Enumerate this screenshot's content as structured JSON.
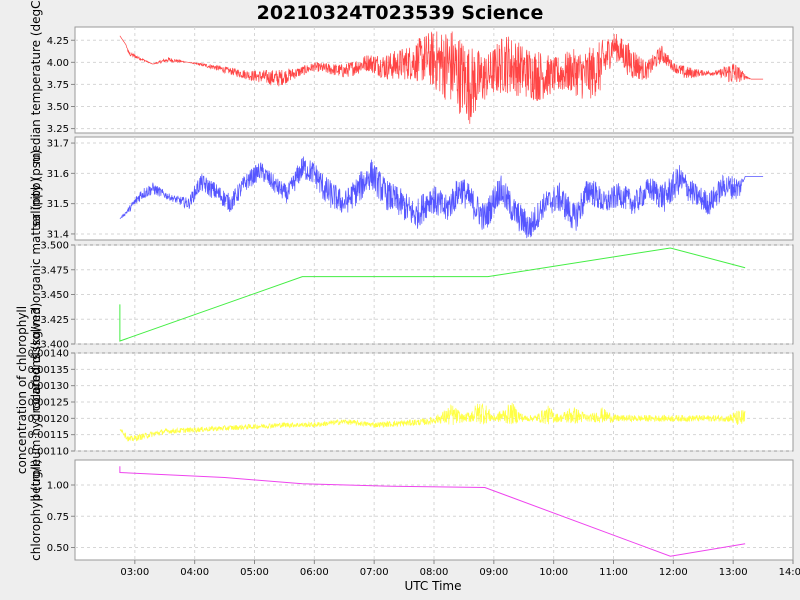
{
  "chart_data": {
    "type": "line",
    "title": "20210324T023539 Science",
    "xlabel": "UTC Time",
    "x_ticks": [
      "03:00",
      "04:00",
      "05:00",
      "06:00",
      "07:00",
      "08:00",
      "09:00",
      "10:00",
      "11:00",
      "12:00",
      "13:00",
      "14:00"
    ],
    "x_range_hours": [
      2.0,
      14.0
    ],
    "grid": true,
    "panels": [
      {
        "ylabel": "median temperature (degC)",
        "color": "#ff4444",
        "ylim": [
          3.2,
          4.4
        ],
        "y_ticks": [
          "3.25",
          "3.50",
          "3.75",
          "4.00",
          "4.25"
        ],
        "y_tick_values": [
          3.25,
          3.5,
          3.75,
          4.0,
          4.25
        ],
        "noisy": true,
        "x": [
          2.75,
          2.85,
          2.9,
          3.3,
          3.55,
          3.9,
          4.3,
          4.6,
          4.95,
          5.4,
          5.7,
          6.0,
          6.5,
          6.9,
          7.2,
          7.6,
          7.9,
          8.3,
          8.6,
          8.9,
          9.2,
          9.5,
          9.75,
          10.0,
          10.3,
          10.55,
          10.8,
          11.0,
          11.3,
          11.55,
          11.8,
          12.0,
          12.2,
          12.5,
          12.75,
          13.0,
          13.2,
          13.3,
          13.5
        ],
        "values": [
          4.3,
          4.2,
          4.1,
          3.98,
          4.03,
          4.0,
          3.95,
          3.9,
          3.85,
          3.82,
          3.88,
          3.95,
          3.9,
          4.0,
          3.95,
          4.0,
          4.05,
          3.95,
          3.75,
          3.85,
          4.0,
          3.9,
          3.85,
          3.85,
          3.9,
          3.85,
          3.95,
          4.2,
          4.0,
          3.9,
          4.1,
          3.95,
          3.88,
          3.88,
          3.88,
          3.88,
          3.84,
          3.81,
          3.81
        ],
        "amplitude": [
          0,
          0,
          0.03,
          0,
          0.03,
          0,
          0.03,
          0.04,
          0.06,
          0.1,
          0.06,
          0.05,
          0.08,
          0.1,
          0.15,
          0.2,
          0.3,
          0.45,
          0.45,
          0.25,
          0.35,
          0.3,
          0.3,
          0.2,
          0.25,
          0.3,
          0.3,
          0.15,
          0.2,
          0.1,
          0.1,
          0.05,
          0.08,
          0.03,
          0.03,
          0.15,
          0.03,
          0,
          0
        ]
      },
      {
        "ylabel": "salinity (psu)",
        "color": "#5555ff",
        "ylim": [
          31.38,
          31.72
        ],
        "y_ticks": [
          "31.4",
          "31.5",
          "31.6",
          "31.7"
        ],
        "y_tick_values": [
          31.4,
          31.5,
          31.6,
          31.7
        ],
        "noisy": true,
        "x": [
          2.75,
          2.9,
          3.1,
          3.3,
          3.6,
          3.9,
          4.1,
          4.35,
          4.6,
          4.85,
          5.1,
          5.35,
          5.55,
          5.8,
          6.0,
          6.2,
          6.5,
          6.75,
          6.95,
          7.2,
          7.45,
          7.7,
          7.95,
          8.2,
          8.45,
          8.65,
          8.85,
          9.1,
          9.35,
          9.6,
          9.85,
          10.1,
          10.35,
          10.6,
          10.85,
          11.1,
          11.35,
          11.6,
          11.85,
          12.1,
          12.35,
          12.6,
          12.85,
          13.1,
          13.2,
          13.5
        ],
        "values": [
          31.45,
          31.48,
          31.53,
          31.55,
          31.52,
          31.5,
          31.57,
          31.54,
          31.5,
          31.57,
          31.61,
          31.56,
          31.53,
          31.62,
          31.6,
          31.54,
          31.5,
          31.55,
          31.6,
          31.53,
          31.5,
          31.46,
          31.52,
          31.48,
          31.55,
          31.5,
          31.45,
          31.55,
          31.47,
          31.42,
          31.5,
          31.52,
          31.45,
          31.55,
          31.5,
          31.53,
          31.5,
          31.55,
          31.52,
          31.58,
          31.53,
          31.5,
          31.56,
          31.55,
          31.59,
          31.59
        ],
        "amplitude": [
          0,
          0.01,
          0.02,
          0.02,
          0.01,
          0.02,
          0.03,
          0.03,
          0.03,
          0.03,
          0.03,
          0.03,
          0.03,
          0.04,
          0.04,
          0.05,
          0.04,
          0.05,
          0.05,
          0.05,
          0.05,
          0.05,
          0.05,
          0.05,
          0.05,
          0.05,
          0.05,
          0.05,
          0.05,
          0.05,
          0.04,
          0.05,
          0.05,
          0.05,
          0.04,
          0.04,
          0.04,
          0.04,
          0.05,
          0.05,
          0.04,
          0.04,
          0.04,
          0.04,
          0,
          0
        ]
      },
      {
        "ylabel": "colored dissolved organic matter (ppb)",
        "color": "#44ee44",
        "ylim": [
          3.4,
          3.5
        ],
        "y_ticks": [
          "3.400",
          "3.425",
          "3.450",
          "3.475",
          "3.500"
        ],
        "y_tick_values": [
          3.4,
          3.425,
          3.45,
          3.475,
          3.5
        ],
        "noisy": false,
        "x": [
          2.75,
          2.75,
          5.8,
          8.9,
          11.95,
          13.2
        ],
        "values": [
          3.44,
          3.403,
          3.468,
          3.468,
          3.497,
          3.477
        ]
      },
      {
        "ylabel": "petroleum hydrocarbons (kg/m3)",
        "color": "#ffff44",
        "ylim": [
          0.0011,
          0.0014
        ],
        "y_ticks": [
          "0.00110",
          "0.00115",
          "0.00120",
          "0.00125",
          "0.00130",
          "0.00135",
          "0.00140"
        ],
        "y_tick_values": [
          0.0011,
          0.00115,
          0.0012,
          0.00125,
          0.0013,
          0.00135,
          0.0014
        ],
        "noisy": true,
        "x": [
          2.75,
          2.9,
          3.5,
          4.0,
          4.5,
          5.0,
          5.5,
          6.0,
          6.5,
          7.0,
          7.5,
          7.9,
          8.1,
          8.3,
          8.5,
          8.8,
          9.0,
          9.3,
          9.5,
          9.7,
          9.9,
          10.1,
          10.3,
          10.6,
          10.8,
          11.0,
          11.2,
          11.5,
          12.0,
          12.5,
          12.9,
          13.0,
          13.2
        ],
        "values": [
          0.00117,
          0.001135,
          0.00116,
          0.001165,
          0.00117,
          0.001175,
          0.00118,
          0.00118,
          0.00119,
          0.00118,
          0.001185,
          0.00119,
          0.0012,
          0.00121,
          0.0012,
          0.00122,
          0.0012,
          0.001215,
          0.0012,
          0.0012,
          0.00121,
          0.0012,
          0.00121,
          0.0012,
          0.00121,
          0.0012,
          0.0012,
          0.0012,
          0.0012,
          0.0012,
          0.0012,
          0.0012,
          0.0012
        ],
        "amplitude": [
          5e-06,
          1e-05,
          8e-06,
          8e-06,
          8e-06,
          8e-06,
          8e-06,
          8e-06,
          8e-06,
          8e-06,
          1e-05,
          1e-05,
          1.5e-05,
          3.5e-05,
          1e-05,
          4e-05,
          1e-05,
          3.5e-05,
          1e-05,
          1e-05,
          3e-05,
          1e-05,
          3e-05,
          1e-05,
          2.5e-05,
          1.2e-05,
          1e-05,
          1e-05,
          1e-05,
          1e-05,
          1e-05,
          2e-05,
          3e-05
        ]
      },
      {
        "ylabel": "chlorophyll (ug/l)",
        "color": "#ee44ee",
        "ylim": [
          0.4,
          1.2
        ],
        "y_ticks": [
          "0.50",
          "0.75",
          "1.00"
        ],
        "y_tick_values": [
          0.5,
          0.75,
          1.0
        ],
        "noisy": false,
        "x": [
          2.75,
          2.75,
          4.5,
          5.8,
          7.3,
          8.85,
          11.95,
          13.2
        ],
        "values": [
          1.15,
          1.1,
          1.06,
          1.01,
          0.99,
          0.98,
          0.43,
          0.53
        ]
      }
    ],
    "extra_ylabels": [
      "concentration of chlorophyll"
    ]
  }
}
